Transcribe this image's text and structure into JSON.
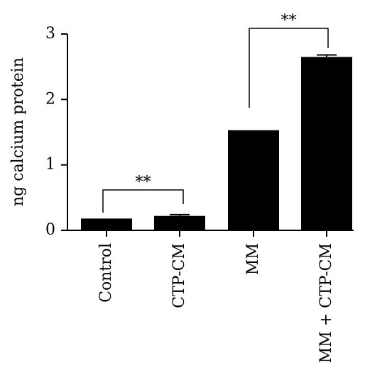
{
  "chart_data": {
    "type": "bar",
    "ylabel": "ng calcium protein",
    "xlabel": "",
    "categories": [
      "Control",
      "CTP-CM",
      "MM",
      "MM + CTP-CM"
    ],
    "values": [
      0.18,
      0.22,
      1.53,
      2.65
    ],
    "errors": [
      0.0,
      0.02,
      0.0,
      0.03
    ],
    "ylim": [
      0,
      3
    ],
    "yticks": [
      "0",
      "1",
      "2",
      "3"
    ],
    "bar_color": "#000000",
    "grid": false,
    "significance": [
      {
        "from": 0,
        "to": 1,
        "label": "**"
      },
      {
        "from": 2,
        "to": 3,
        "label": "**"
      }
    ]
  }
}
